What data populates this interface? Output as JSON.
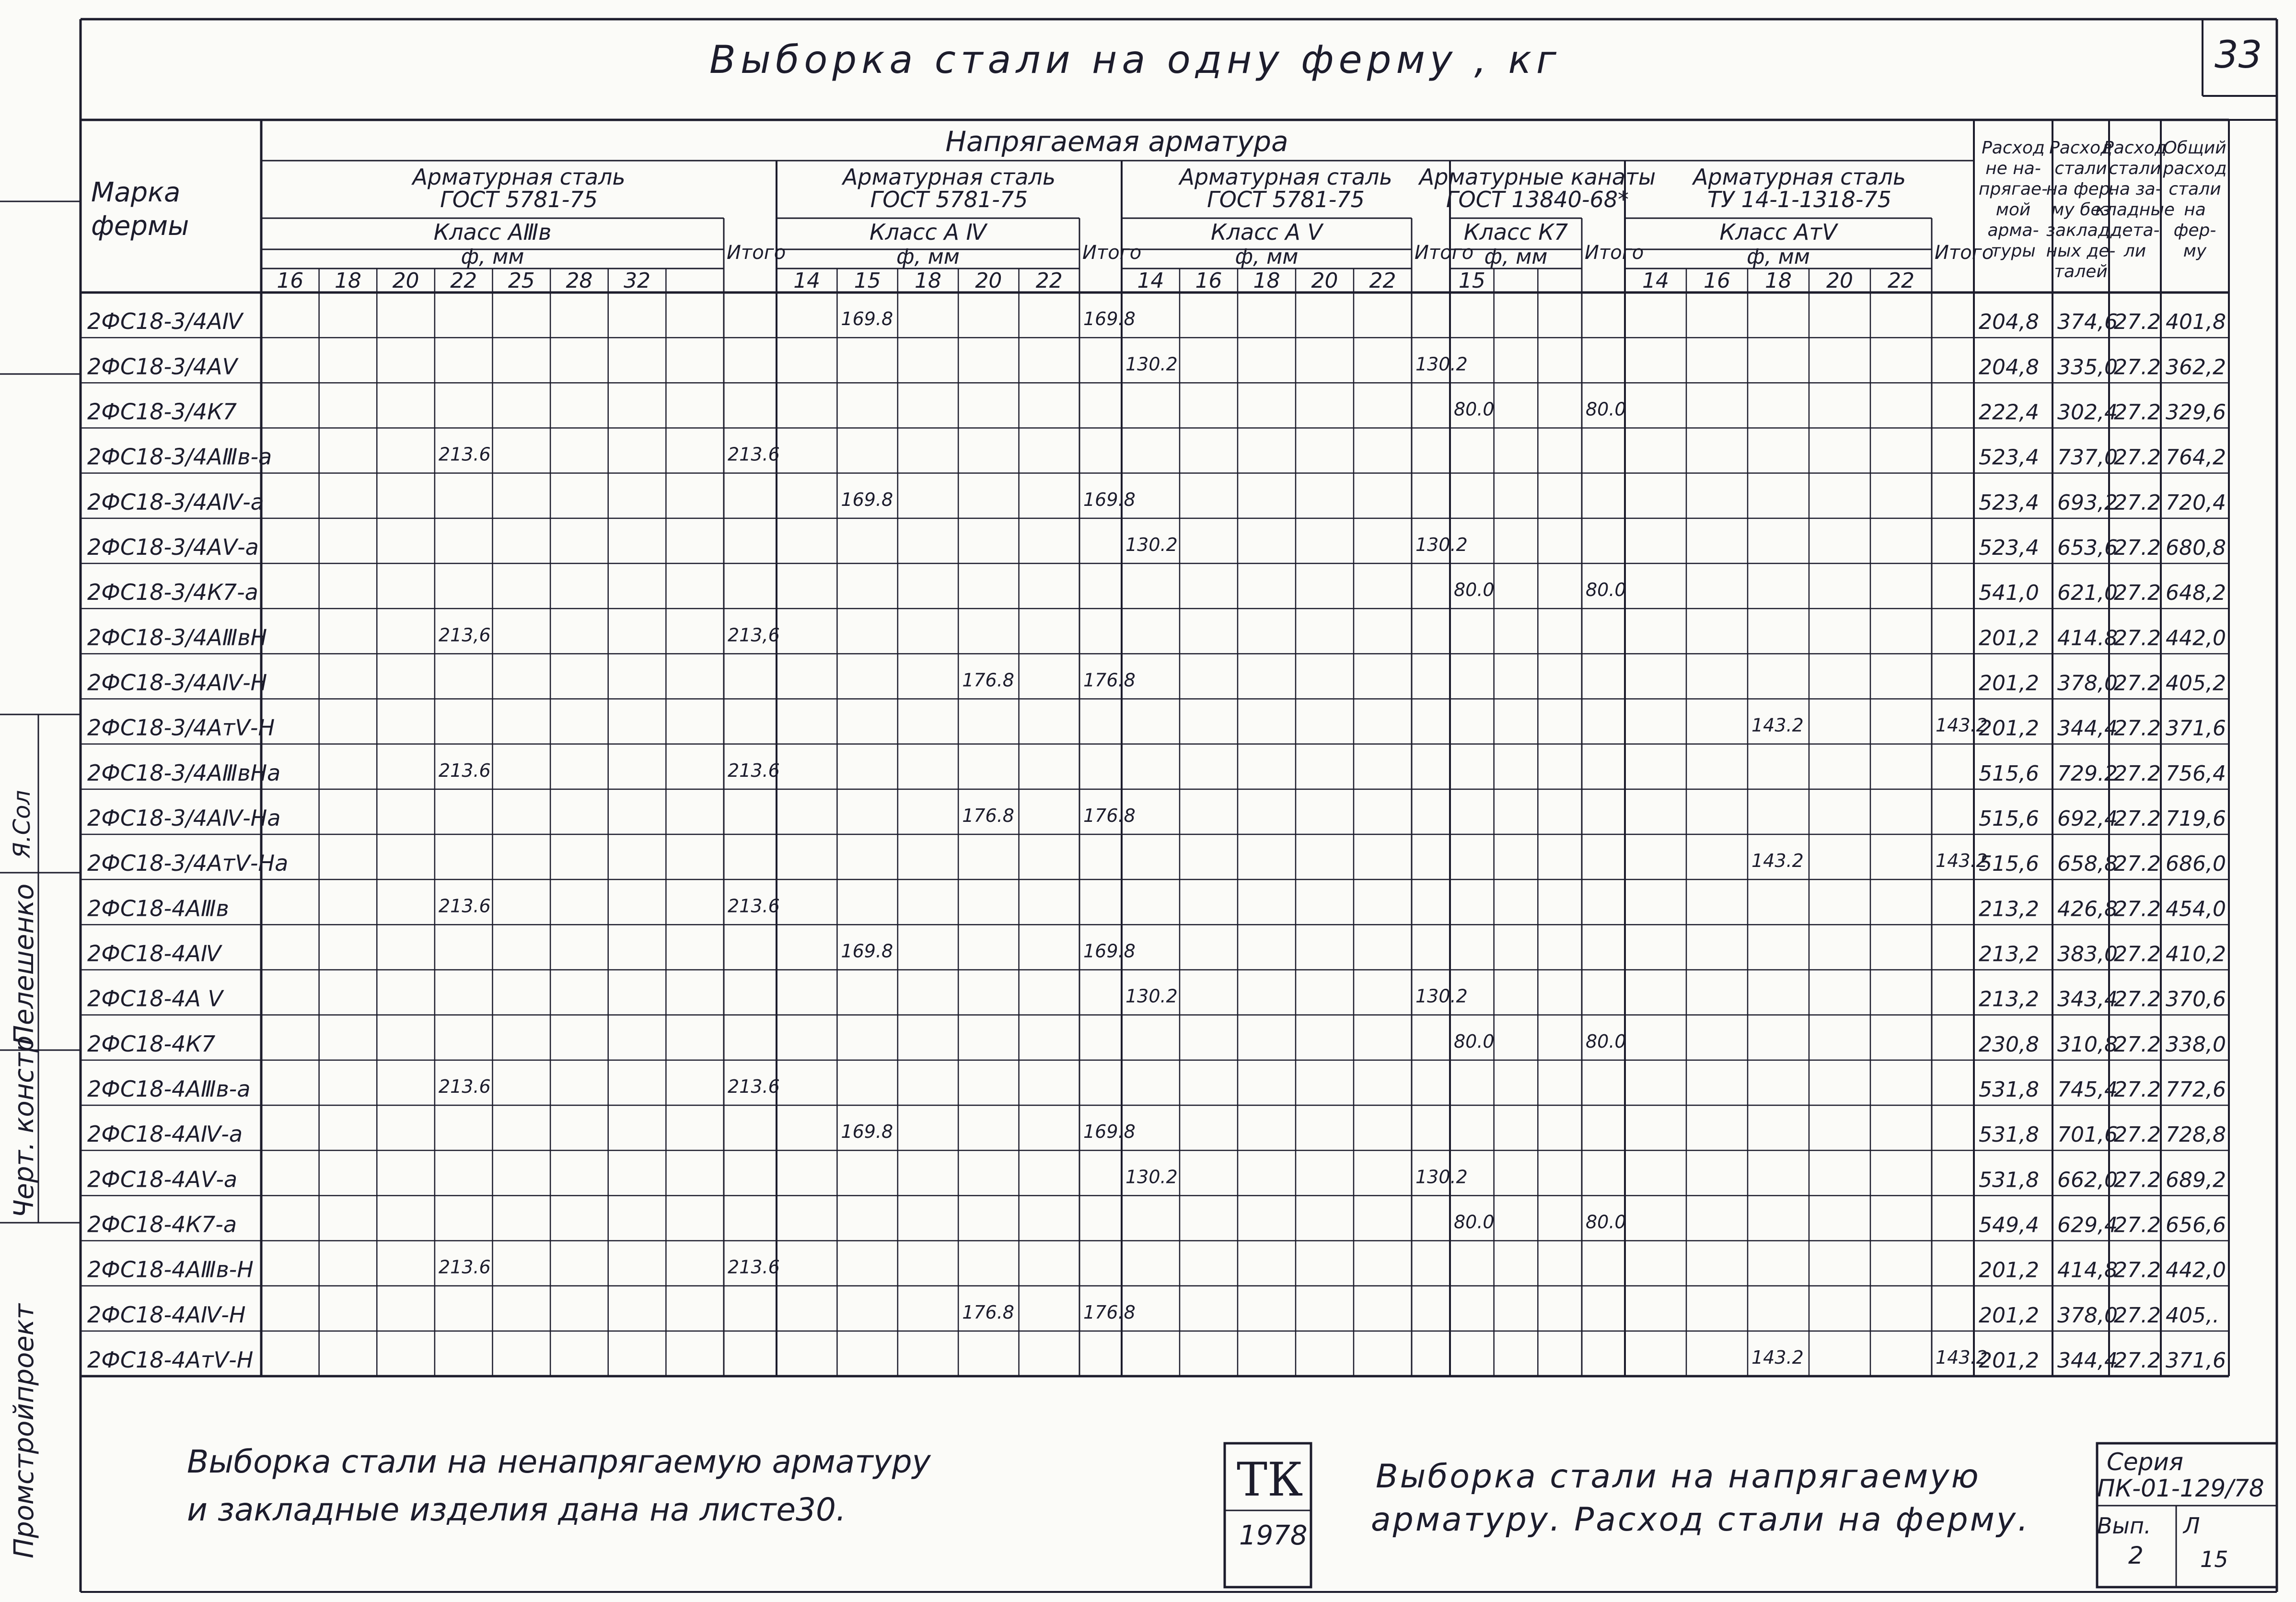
{
  "sheet_number": "33",
  "title": "Выборка стали на одну ферму , кг",
  "sidebar": {
    "org": "Промстройпроект",
    "dept": "Черт. констр",
    "name": "Пелешенко",
    "signature": "Я.Сол"
  },
  "table": {
    "col_mark": "Марка фермы",
    "group_top": "Напрягаемая арматура",
    "groups": [
      {
        "title": "Арматурная сталь ГОСТ 5781-75",
        "class": "Класс АⅢв",
        "diam_label": "ф, мм",
        "diams": [
          "16",
          "18",
          "20",
          "22",
          "25",
          "28",
          "32"
        ],
        "total": "Итого"
      },
      {
        "title": "Арматурная сталь ГОСТ 5781-75",
        "class": "Класс А Ⅳ",
        "diam_label": "ф, мм",
        "diams": [
          "14",
          "15",
          "18",
          "20",
          "22"
        ],
        "total": "Итого"
      },
      {
        "title": "Арматурная сталь ГОСТ 5781-75",
        "class": "Класс А Ⅴ",
        "diam_label": "ф, мм",
        "diams": [
          "14",
          "16",
          "18",
          "20",
          "22"
        ],
        "total": "Итого"
      },
      {
        "title": "Арматурные канаты ГОСТ 13840-68*",
        "class": "Класс К7",
        "diam_label": "ф, мм",
        "diams": [
          "15",
          "",
          ""
        ],
        "total": "Итого"
      },
      {
        "title": "Арматурная сталь ТУ 14-1-1318-75",
        "class": "Класс АтⅤ",
        "diam_label": "ф, мм",
        "diams": [
          "14",
          "16",
          "18",
          "20",
          "22"
        ],
        "total": "Итого"
      }
    ],
    "summary_headers": [
      "Расход не напрягаемой арматуры",
      "Расход стали на ферму без закладных деталей",
      "Расход стали на закладные детали",
      "Общий расход стали на ферму"
    ],
    "rows": [
      {
        "mark": "2ФС18-3/4АⅣ",
        "g": 1,
        "d": 1,
        "v": "169.8",
        "t": "169.8",
        "s": [
          "204,8",
          "374,6",
          "27.2",
          "401,8"
        ]
      },
      {
        "mark": "2ФС18-3/4АⅤ",
        "g": 2,
        "d": 0,
        "v": "130.2",
        "t": "130.2",
        "s": [
          "204,8",
          "335,0",
          "27.2",
          "362,2"
        ]
      },
      {
        "mark": "2ФС18-3/4К7",
        "g": 3,
        "d": 0,
        "v": "80.0",
        "t": "80.0",
        "s": [
          "222,4",
          "302,4",
          "27.2",
          "329,6"
        ]
      },
      {
        "mark": "2ФС18-3/4АⅢв-а",
        "g": 0,
        "d": 3,
        "v": "213.6",
        "t": "213.6",
        "s": [
          "523,4",
          "737,0",
          "27.2",
          "764,2"
        ]
      },
      {
        "mark": "2ФС18-3/4АⅣ-а",
        "g": 1,
        "d": 1,
        "v": "169.8",
        "t": "169.8",
        "s": [
          "523,4",
          "693,2",
          "27.2",
          "720,4"
        ]
      },
      {
        "mark": "2ФС18-3/4АⅤ-а",
        "g": 2,
        "d": 0,
        "v": "130.2",
        "t": "130.2",
        "s": [
          "523,4",
          "653,6",
          "27.2",
          "680,8"
        ]
      },
      {
        "mark": "2ФС18-3/4К7-а",
        "g": 3,
        "d": 0,
        "v": "80.0",
        "t": "80.0",
        "s": [
          "541,0",
          "621,0",
          "27.2",
          "648,2"
        ]
      },
      {
        "mark": "2ФС18-3/4АⅢвН",
        "g": 0,
        "d": 3,
        "v": "213,6",
        "t": "213,6",
        "s": [
          "201,2",
          "414.8",
          "27.2",
          "442,0"
        ]
      },
      {
        "mark": "2ФС18-3/4АⅣ-Н",
        "g": 1,
        "d": 3,
        "v": "176.8",
        "t": "176.8",
        "s": [
          "201,2",
          "378,0",
          "27.2",
          "405,2"
        ]
      },
      {
        "mark": "2ФС18-3/4АтⅤ-Н",
        "g": 4,
        "d": 2,
        "v": "143.2",
        "t": "143.2",
        "s": [
          "201,2",
          "344,4",
          "27.2",
          "371,6"
        ]
      },
      {
        "mark": "2ФС18-3/4АⅢвНа",
        "g": 0,
        "d": 3,
        "v": "213.6",
        "t": "213.6",
        "s": [
          "515,6",
          "729.2",
          "27.2",
          "756,4"
        ]
      },
      {
        "mark": "2ФС18-3/4АⅣ-На",
        "g": 1,
        "d": 3,
        "v": "176.8",
        "t": "176.8",
        "s": [
          "515,6",
          "692,4",
          "27.2",
          "719,6"
        ]
      },
      {
        "mark": "2ФС18-3/4АтⅤ-На",
        "g": 4,
        "d": 2,
        "v": "143.2",
        "t": "143.2",
        "s": [
          "515,6",
          "658,8",
          "27.2",
          "686,0"
        ]
      },
      {
        "mark": "2ФС18-4АⅢв",
        "g": 0,
        "d": 3,
        "v": "213.6",
        "t": "213.6",
        "s": [
          "213,2",
          "426,8",
          "27.2",
          "454,0"
        ]
      },
      {
        "mark": "2ФС18-4АⅣ",
        "g": 1,
        "d": 1,
        "v": "169.8",
        "t": "169.8",
        "s": [
          "213,2",
          "383,0",
          "27.2",
          "410,2"
        ]
      },
      {
        "mark": "2ФС18-4А Ⅴ",
        "g": 2,
        "d": 0,
        "v": "130.2",
        "t": "130.2",
        "s": [
          "213,2",
          "343,4",
          "27.2",
          "370,6"
        ]
      },
      {
        "mark": "2ФС18-4К7",
        "g": 3,
        "d": 0,
        "v": "80.0",
        "t": "80.0",
        "s": [
          "230,8",
          "310,8",
          "27.2",
          "338,0"
        ]
      },
      {
        "mark": "2ФС18-4АⅢв-а",
        "g": 0,
        "d": 3,
        "v": "213.6",
        "t": "213.6",
        "s": [
          "531,8",
          "745,4",
          "27.2",
          "772,6"
        ]
      },
      {
        "mark": "2ФС18-4АⅣ-а",
        "g": 1,
        "d": 1,
        "v": "169.8",
        "t": "169.8",
        "s": [
          "531,8",
          "701,6",
          "27.2",
          "728,8"
        ]
      },
      {
        "mark": "2ФС18-4АⅤ-а",
        "g": 2,
        "d": 0,
        "v": "130.2",
        "t": "130.2",
        "s": [
          "531,8",
          "662,0",
          "27.2",
          "689,2"
        ]
      },
      {
        "mark": "2ФС18-4К7-а",
        "g": 3,
        "d": 0,
        "v": "80.0",
        "t": "80.0",
        "s": [
          "549,4",
          "629,4",
          "27.2",
          "656,6"
        ]
      },
      {
        "mark": "2ФС18-4АⅢв-Н",
        "g": 0,
        "d": 3,
        "v": "213.6",
        "t": "213.6",
        "s": [
          "201,2",
          "414,8",
          "27.2",
          "442,0"
        ]
      },
      {
        "mark": "2ФС18-4АⅣ-Н",
        "g": 1,
        "d": 3,
        "v": "176.8",
        "t": "176.8",
        "s": [
          "201,2",
          "378,0",
          "27.2",
          "405,."
        ]
      },
      {
        "mark": "2ФС18-4АтⅤ-Н",
        "g": 4,
        "d": 2,
        "v": "143.2",
        "t": "143.2",
        "s": [
          "201,2",
          "344,4",
          "27.2",
          "371,6"
        ]
      }
    ]
  },
  "footer": {
    "note": "Выборка стали на ненапрягаемую арматуру и закладные изделия дана на листе30.",
    "note_line1": "Выборка стали на ненапрягаемую арматуру",
    "note_line2": "и закладные изделия дана на листе30.",
    "stamp_tk": "ТК",
    "stamp_year": "1978",
    "stamp_title_1": "Выборка стали на напрягаемую",
    "stamp_title_2": "арматуру. Расход стали на ферму.",
    "series_label": "Серия",
    "series": "ПК-01-129/78",
    "issue_label": "Вып.",
    "issue": "2",
    "sheet_label": "Л",
    "sheet": "15"
  }
}
